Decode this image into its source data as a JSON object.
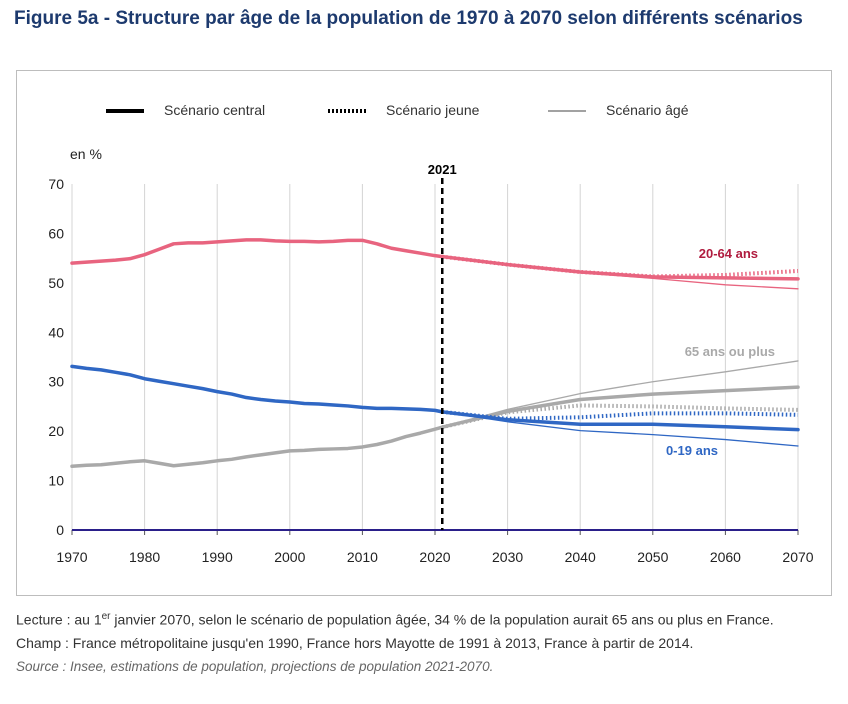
{
  "figure": {
    "title": "Figure 5a - Structure par âge de la population de 1970 à 2070 selon différents scénarios"
  },
  "chart_data": {
    "type": "line",
    "unit_label": "en %",
    "x_ticks": [
      1970,
      1980,
      1990,
      2000,
      2010,
      2020,
      2030,
      2040,
      2050,
      2060,
      2070
    ],
    "y_ticks": [
      0,
      10,
      20,
      30,
      40,
      50,
      60,
      70
    ],
    "xlim": [
      1970,
      2070
    ],
    "ylim": [
      0,
      70
    ],
    "grid": "vertical",
    "legend_position": "top",
    "legend": [
      {
        "name": "Scénario central",
        "style": "thick"
      },
      {
        "name": "Scénario jeune",
        "style": "dotted"
      },
      {
        "name": "Scénario âgé",
        "style": "thin"
      }
    ],
    "marker_line": {
      "x": 2021,
      "label": "2021"
    },
    "groups": [
      {
        "label": "20-64 ans",
        "color": "#e8647f",
        "label_color": "#b01c3f",
        "historic": {
          "x": [
            1970,
            1972,
            1974,
            1976,
            1978,
            1980,
            1982,
            1984,
            1986,
            1988,
            1990,
            1992,
            1994,
            1996,
            1998,
            2000,
            2002,
            2004,
            2006,
            2008,
            2010,
            2012,
            2014,
            2016,
            2018,
            2020,
            2021
          ],
          "y": [
            54.0,
            54.2,
            54.4,
            54.6,
            54.9,
            55.7,
            56.8,
            57.9,
            58.1,
            58.1,
            58.3,
            58.5,
            58.7,
            58.7,
            58.5,
            58.4,
            58.4,
            58.3,
            58.4,
            58.6,
            58.6,
            57.9,
            57.0,
            56.5,
            56.0,
            55.5,
            55.3
          ]
        },
        "central": {
          "x": [
            2021,
            2030,
            2040,
            2050,
            2060,
            2070
          ],
          "y": [
            55.3,
            53.7,
            52.2,
            51.2,
            51.0,
            50.8
          ]
        },
        "jeune": {
          "x": [
            2021,
            2030,
            2040,
            2050,
            2060,
            2070
          ],
          "y": [
            55.3,
            53.7,
            52.2,
            51.3,
            51.6,
            52.4
          ]
        },
        "age": {
          "x": [
            2021,
            2030,
            2040,
            2050,
            2060,
            2070
          ],
          "y": [
            55.3,
            53.7,
            52.1,
            50.9,
            49.6,
            48.8
          ]
        }
      },
      {
        "label": "65 ans ou plus",
        "color": "#a9a9a9",
        "label_color": "#a9a9a9",
        "historic": {
          "x": [
            1970,
            1972,
            1974,
            1976,
            1978,
            1980,
            1982,
            1984,
            1986,
            1988,
            1990,
            1992,
            1994,
            1996,
            1998,
            2000,
            2002,
            2004,
            2006,
            2008,
            2010,
            2012,
            2014,
            2016,
            2018,
            2020,
            2021
          ],
          "y": [
            12.9,
            13.1,
            13.2,
            13.5,
            13.8,
            14.0,
            13.5,
            13.0,
            13.3,
            13.6,
            14.0,
            14.3,
            14.8,
            15.2,
            15.6,
            16.0,
            16.1,
            16.3,
            16.4,
            16.5,
            16.8,
            17.3,
            18.0,
            18.9,
            19.6,
            20.4,
            20.8
          ]
        },
        "central": {
          "x": [
            2021,
            2030,
            2040,
            2050,
            2060,
            2070
          ],
          "y": [
            20.8,
            24.0,
            26.4,
            27.5,
            28.2,
            28.9
          ]
        },
        "jeune": {
          "x": [
            2021,
            2030,
            2040,
            2050,
            2060,
            2070
          ],
          "y": [
            20.8,
            23.8,
            25.2,
            25.0,
            24.6,
            24.3
          ]
        },
        "age": {
          "x": [
            2021,
            2030,
            2040,
            2050,
            2060,
            2070
          ],
          "y": [
            20.8,
            24.4,
            27.6,
            30.0,
            32.0,
            34.2
          ]
        }
      },
      {
        "label": "0-19 ans",
        "color": "#2f67c4",
        "label_color": "#2f67c4",
        "historic": {
          "x": [
            1970,
            1972,
            1974,
            1976,
            1978,
            1980,
            1982,
            1984,
            1986,
            1988,
            1990,
            1992,
            1994,
            1996,
            1998,
            2000,
            2002,
            2004,
            2006,
            2008,
            2010,
            2012,
            2014,
            2016,
            2018,
            2020,
            2021
          ],
          "y": [
            33.1,
            32.7,
            32.4,
            31.9,
            31.4,
            30.6,
            30.1,
            29.6,
            29.1,
            28.6,
            28.0,
            27.5,
            26.8,
            26.4,
            26.1,
            25.9,
            25.6,
            25.5,
            25.3,
            25.1,
            24.8,
            24.6,
            24.6,
            24.5,
            24.4,
            24.2,
            23.9
          ]
        },
        "central": {
          "x": [
            2021,
            2030,
            2040,
            2050,
            2060,
            2070
          ],
          "y": [
            23.9,
            22.3,
            21.4,
            21.4,
            20.9,
            20.3
          ]
        },
        "jeune": {
          "x": [
            2021,
            2030,
            2040,
            2050,
            2060,
            2070
          ],
          "y": [
            23.9,
            22.5,
            22.8,
            23.6,
            23.6,
            23.3
          ]
        },
        "age": {
          "x": [
            2021,
            2030,
            2040,
            2050,
            2060,
            2070
          ],
          "y": [
            23.9,
            21.9,
            20.1,
            19.3,
            18.3,
            17.0
          ]
        }
      }
    ]
  },
  "notes": {
    "lecture_pre": "Lecture : au 1",
    "lecture_sup": "er",
    "lecture_post": " janvier 2070, selon le scénario de population âgée, 34 % de la population aurait 65 ans ou plus en France.",
    "champ": "Champ : France métropolitaine jusqu'en 1990, France hors Mayotte de 1991 à 2013, France à partir de 2014.",
    "source": "Source : Insee, estimations de population, projections de population 2021-2070."
  }
}
